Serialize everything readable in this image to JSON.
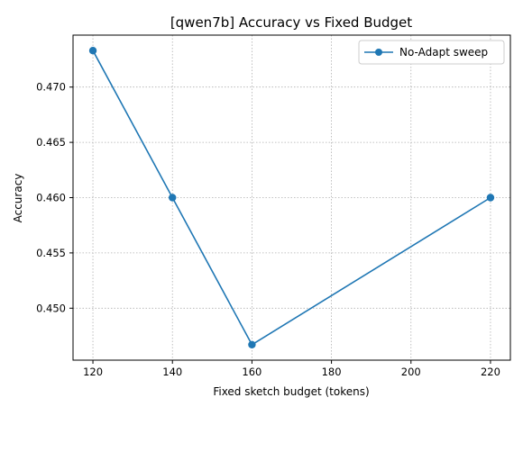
{
  "chart_data": {
    "type": "line",
    "title": "[qwen7b] Accuracy vs Fixed Budget",
    "xlabel": "Fixed sketch budget (tokens)",
    "ylabel": "Accuracy",
    "x": [
      120,
      140,
      160,
      220
    ],
    "series": [
      {
        "name": "No-Adapt sweep",
        "values": [
          0.4733,
          0.46,
          0.4467,
          0.46
        ],
        "color": "#1f77b4",
        "marker": "circle"
      }
    ],
    "xlim": [
      115,
      225
    ],
    "ylim": [
      0.4453,
      0.4747
    ],
    "xticks": [
      120,
      140,
      160,
      180,
      200,
      220
    ],
    "yticks": [
      0.45,
      0.455,
      0.46,
      0.465,
      0.47
    ],
    "ytick_labels": [
      "0.450",
      "0.455",
      "0.460",
      "0.465",
      "0.470"
    ],
    "grid": true,
    "legend_position": "top-right"
  }
}
